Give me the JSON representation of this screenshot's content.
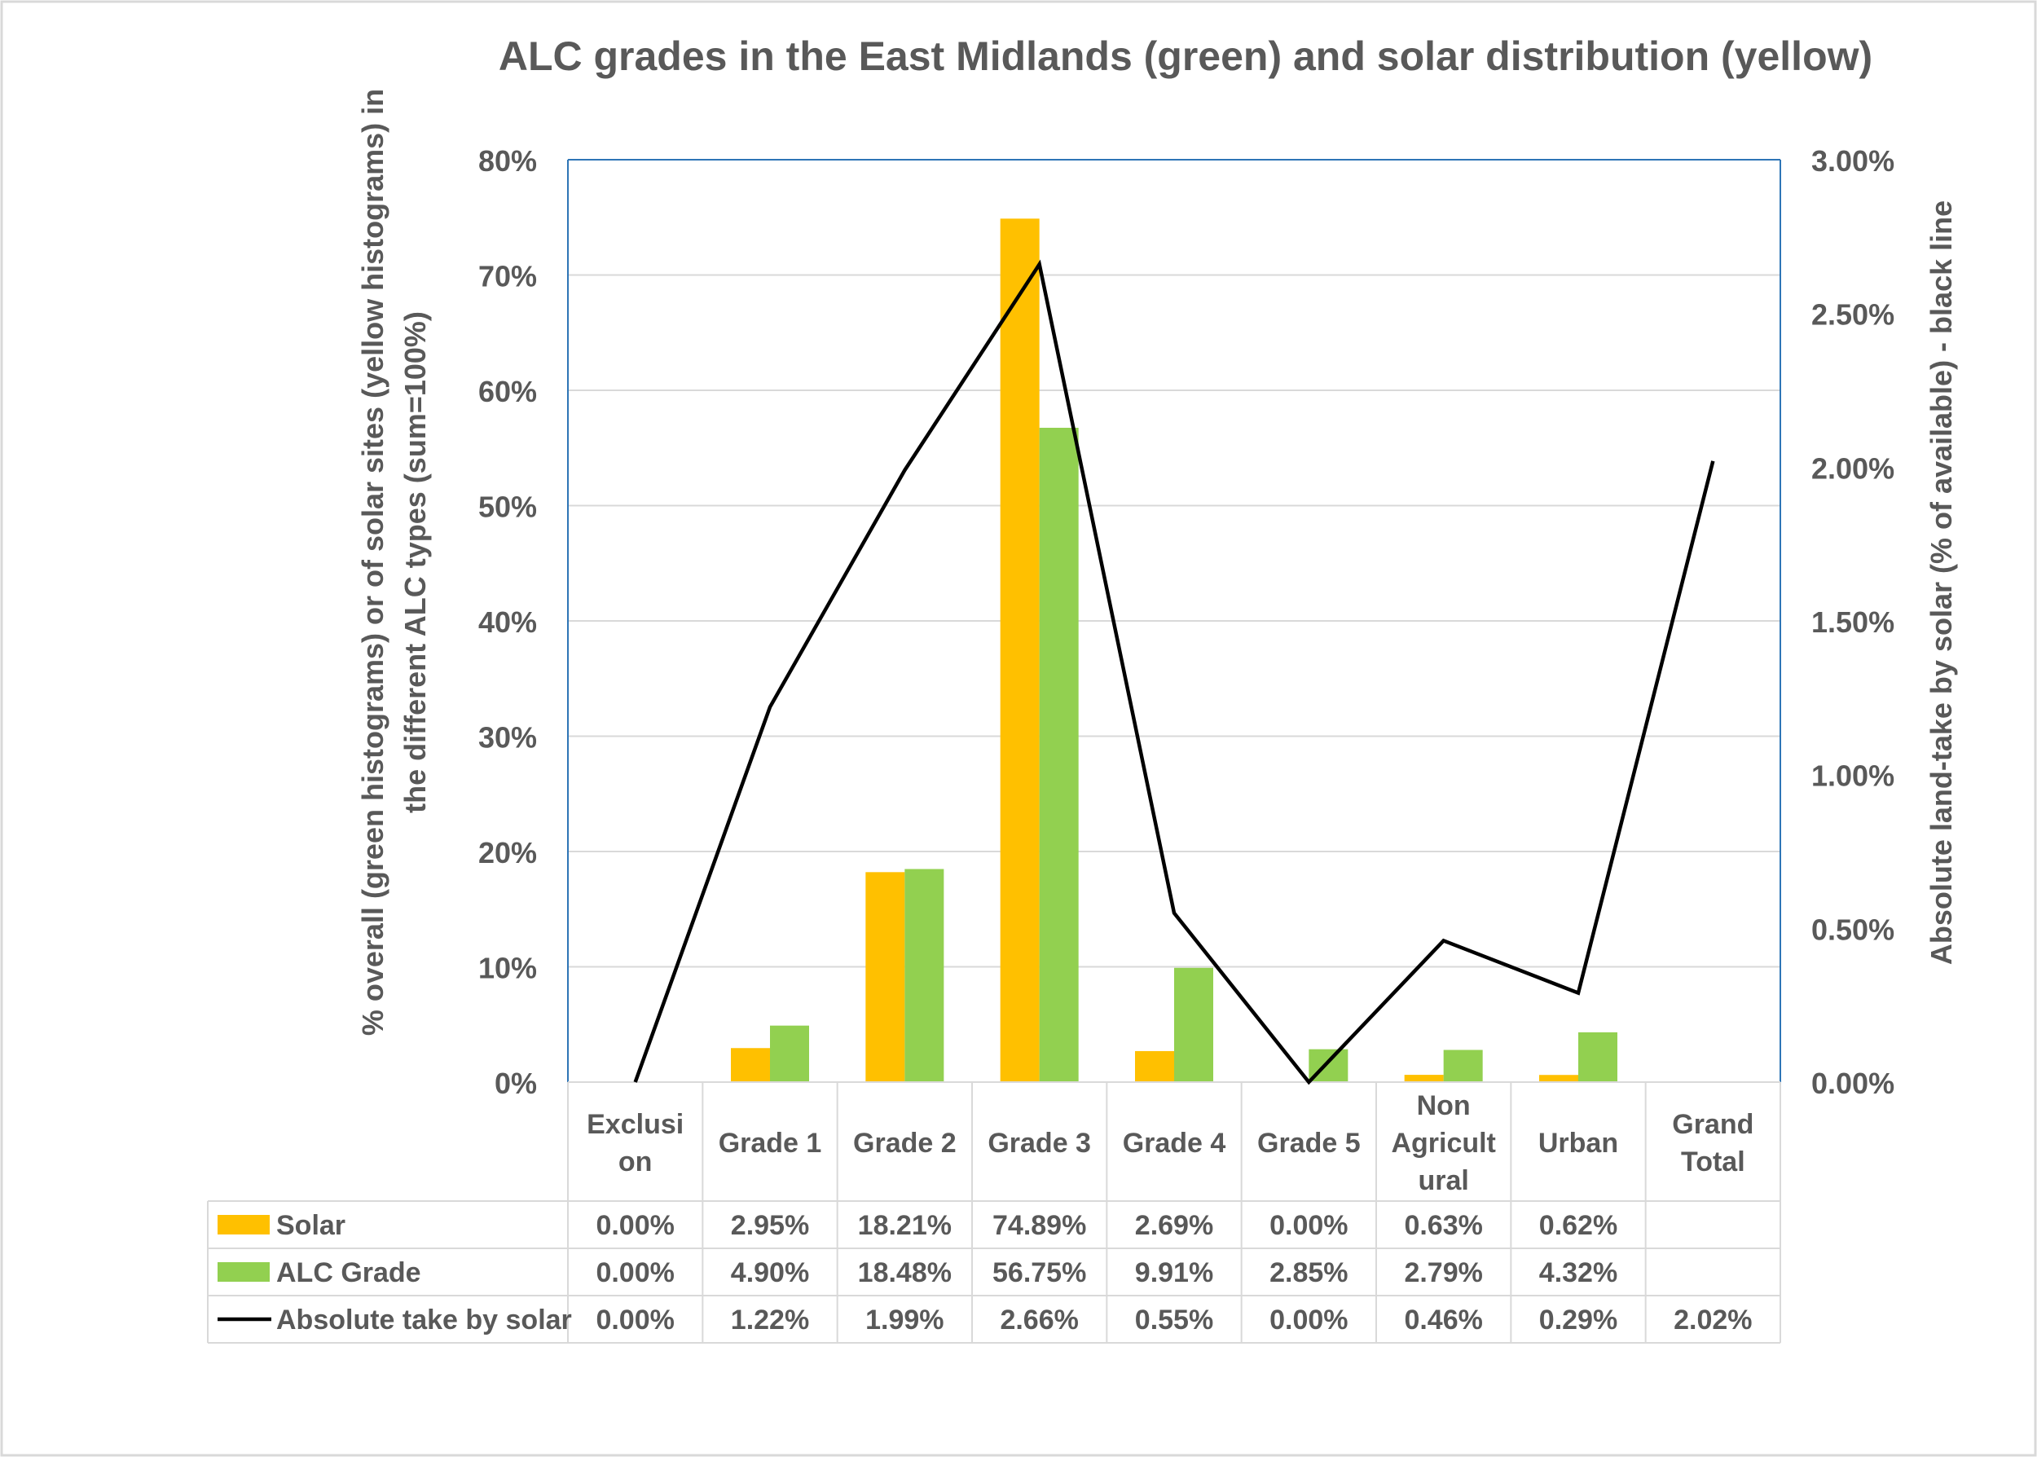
{
  "chart_data": {
    "type": "bar",
    "title": "ALC grades in the East Midlands (green) and solar distribution (yellow)",
    "ylabel": "% overall (green histograms) or of solar sites (yellow histograms) in the different ALC types (sum=100%)",
    "y2label": "Absolute land-take by solar (% of available) - black line",
    "ylim": [
      0,
      80
    ],
    "y2lim": [
      0,
      3
    ],
    "yticks": [
      "0%",
      "10%",
      "20%",
      "30%",
      "40%",
      "50%",
      "60%",
      "70%",
      "80%"
    ],
    "y2ticks": [
      "0.00%",
      "0.50%",
      "1.00%",
      "1.50%",
      "2.00%",
      "2.50%",
      "3.00%"
    ],
    "grid": true,
    "legend": "data-table-left",
    "categories": [
      [
        "Exclusi",
        "on"
      ],
      [
        "Grade 1"
      ],
      [
        "Grade 2"
      ],
      [
        "Grade 3"
      ],
      [
        "Grade 4"
      ],
      [
        "Grade 5"
      ],
      [
        "Non",
        "Agricult",
        "ural"
      ],
      [
        "Urban"
      ],
      [
        "Grand",
        "Total"
      ]
    ],
    "series": [
      {
        "name": "Solar",
        "kind": "bar",
        "axis": "left",
        "color": "#ffc000",
        "values": [
          0.0,
          2.95,
          18.21,
          74.89,
          2.69,
          0.0,
          0.63,
          0.62,
          null
        ],
        "labels": [
          "0.00%",
          "2.95%",
          "18.21%",
          "74.89%",
          "2.69%",
          "0.00%",
          "0.63%",
          "0.62%",
          ""
        ]
      },
      {
        "name": "ALC Grade",
        "kind": "bar",
        "axis": "left",
        "color": "#92d050",
        "values": [
          0.0,
          4.9,
          18.48,
          56.75,
          9.91,
          2.85,
          2.79,
          4.32,
          null
        ],
        "labels": [
          "0.00%",
          "4.90%",
          "18.48%",
          "56.75%",
          "9.91%",
          "2.85%",
          "2.79%",
          "4.32%",
          ""
        ]
      },
      {
        "name": "Absolute take by solar",
        "kind": "line",
        "axis": "right",
        "color": "#000000",
        "values": [
          0.0,
          1.22,
          1.99,
          2.66,
          0.55,
          0.0,
          0.46,
          0.29,
          2.02
        ],
        "labels": [
          "0.00%",
          "1.22%",
          "1.99%",
          "2.66%",
          "0.55%",
          "0.00%",
          "0.46%",
          "0.29%",
          "2.02%"
        ]
      }
    ]
  }
}
